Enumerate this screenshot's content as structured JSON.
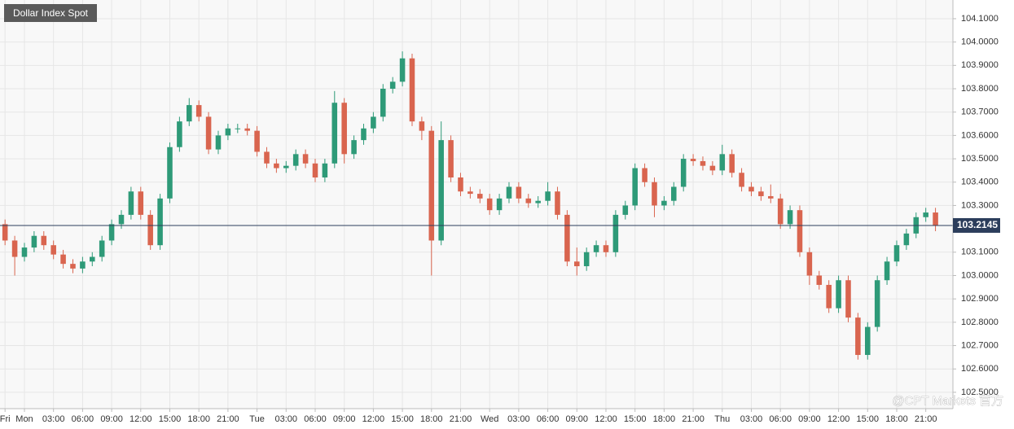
{
  "chart_data": {
    "type": "candlestick",
    "title": "Dollar Index Spot",
    "watermark": "@CPT Markets 官方",
    "up_color": "#2e9a78",
    "down_color": "#d9654f",
    "x": [
      -2,
      -1,
      0,
      1,
      2,
      3,
      4,
      5,
      6,
      7,
      8,
      9,
      10,
      11,
      12,
      13,
      14,
      15,
      16,
      17,
      18,
      19,
      20,
      21,
      22,
      23,
      24,
      25,
      26,
      27,
      28,
      29,
      30,
      31,
      32,
      33,
      34,
      35,
      36,
      37,
      38,
      39,
      40,
      41,
      42,
      43,
      44,
      45,
      46,
      47,
      48,
      49,
      50,
      51,
      52,
      53,
      54,
      55,
      56,
      57,
      58,
      59,
      60,
      61,
      62,
      63,
      64,
      65,
      66,
      67,
      68,
      69,
      70,
      71,
      72,
      73,
      74,
      75,
      76,
      77,
      78,
      79,
      80,
      81,
      82,
      83,
      84,
      85,
      86,
      87,
      88,
      89,
      90,
      91,
      92,
      93,
      94
    ],
    "open": [
      103.22,
      103.15,
      103.08,
      103.12,
      103.17,
      103.13,
      103.09,
      103.05,
      103.03,
      103.06,
      103.08,
      103.15,
      103.22,
      103.26,
      103.36,
      103.26,
      103.13,
      103.33,
      103.55,
      103.66,
      103.73,
      103.68,
      103.54,
      103.6,
      103.63,
      103.63,
      103.62,
      103.53,
      103.48,
      103.46,
      103.47,
      103.52,
      103.48,
      103.42,
      103.48,
      103.74,
      103.52,
      103.58,
      103.63,
      103.68,
      103.8,
      103.83,
      103.93,
      103.66,
      103.62,
      103.15,
      103.58,
      103.42,
      103.36,
      103.35,
      103.33,
      103.28,
      103.33,
      103.38,
      103.33,
      103.31,
      103.32,
      103.36,
      103.26,
      103.06,
      103.04,
      103.1,
      103.13,
      103.1,
      103.26,
      103.3,
      103.46,
      103.4,
      103.3,
      103.32,
      103.38,
      103.5,
      103.49,
      103.47,
      103.45,
      103.52,
      103.44,
      103.38,
      103.36,
      103.34,
      103.33,
      103.22,
      103.28,
      103.1,
      103.0,
      102.96,
      102.86,
      102.98,
      102.82,
      102.66,
      102.78,
      102.98,
      103.06,
      103.13,
      103.18,
      103.25,
      103.27
    ],
    "high": [
      103.24,
      103.17,
      103.14,
      103.19,
      103.19,
      103.15,
      103.11,
      103.07,
      103.08,
      103.1,
      103.17,
      103.24,
      103.28,
      103.38,
      103.38,
      103.28,
      103.35,
      103.57,
      103.68,
      103.76,
      103.75,
      103.7,
      103.62,
      103.65,
      103.65,
      103.65,
      103.64,
      103.55,
      103.5,
      103.49,
      103.54,
      103.54,
      103.5,
      103.5,
      103.79,
      103.76,
      103.6,
      103.65,
      103.7,
      103.82,
      103.85,
      103.96,
      103.95,
      103.68,
      103.64,
      103.66,
      103.6,
      103.44,
      103.38,
      103.37,
      103.35,
      103.35,
      103.4,
      103.4,
      103.35,
      103.34,
      103.4,
      103.38,
      103.28,
      103.12,
      103.12,
      103.15,
      103.15,
      103.28,
      103.32,
      103.48,
      103.48,
      103.42,
      103.34,
      103.4,
      103.52,
      103.52,
      103.51,
      103.49,
      103.56,
      103.54,
      103.46,
      103.4,
      103.38,
      103.39,
      103.35,
      103.3,
      103.3,
      103.12,
      103.02,
      102.98,
      103.0,
      103.0,
      102.84,
      102.8,
      103.0,
      103.08,
      103.15,
      103.2,
      103.27,
      103.29,
      103.29
    ],
    "low": [
      103.13,
      103.0,
      103.06,
      103.1,
      103.11,
      103.07,
      103.03,
      103.01,
      103.01,
      103.04,
      103.06,
      103.13,
      103.2,
      103.24,
      103.24,
      103.11,
      103.11,
      103.31,
      103.53,
      103.64,
      103.66,
      103.52,
      103.52,
      103.58,
      103.61,
      103.6,
      103.51,
      103.46,
      103.44,
      103.44,
      103.45,
      103.46,
      103.4,
      103.4,
      103.46,
      103.48,
      103.5,
      103.56,
      103.61,
      103.66,
      103.78,
      103.81,
      103.64,
      103.58,
      103.0,
      103.13,
      103.4,
      103.34,
      103.33,
      103.31,
      103.26,
      103.26,
      103.31,
      103.31,
      103.29,
      103.29,
      103.3,
      103.24,
      103.04,
      103.0,
      103.02,
      103.08,
      103.08,
      103.08,
      103.24,
      103.28,
      103.38,
      103.25,
      103.28,
      103.3,
      103.36,
      103.47,
      103.45,
      103.43,
      103.43,
      103.42,
      103.36,
      103.34,
      103.32,
      103.31,
      103.2,
      103.2,
      103.08,
      102.96,
      102.94,
      102.84,
      102.84,
      102.8,
      102.64,
      102.64,
      102.76,
      102.96,
      103.04,
      103.11,
      103.16,
      103.23,
      103.19
    ],
    "close": [
      103.15,
      103.08,
      103.12,
      103.17,
      103.13,
      103.09,
      103.05,
      103.03,
      103.06,
      103.08,
      103.15,
      103.22,
      103.26,
      103.36,
      103.26,
      103.13,
      103.33,
      103.55,
      103.66,
      103.73,
      103.68,
      103.54,
      103.6,
      103.63,
      103.63,
      103.62,
      103.53,
      103.48,
      103.46,
      103.47,
      103.52,
      103.48,
      103.42,
      103.48,
      103.74,
      103.52,
      103.58,
      103.63,
      103.68,
      103.8,
      103.83,
      103.93,
      103.66,
      103.62,
      103.15,
      103.58,
      103.42,
      103.36,
      103.35,
      103.33,
      103.28,
      103.33,
      103.38,
      103.33,
      103.31,
      103.32,
      103.36,
      103.26,
      103.06,
      103.04,
      103.1,
      103.13,
      103.1,
      103.26,
      103.3,
      103.46,
      103.4,
      103.3,
      103.32,
      103.38,
      103.5,
      103.49,
      103.47,
      103.45,
      103.52,
      103.44,
      103.38,
      103.36,
      103.34,
      103.33,
      103.22,
      103.28,
      103.1,
      103.0,
      102.96,
      102.86,
      102.98,
      102.82,
      102.66,
      102.78,
      102.98,
      103.06,
      103.13,
      103.18,
      103.25,
      103.27,
      103.2145
    ],
    "last_price": 103.2145,
    "xlim": [
      -2.52,
      95.8
    ],
    "ylim": [
      102.43,
      104.18
    ],
    "xticks": [
      {
        "value": -2,
        "label": "Fri"
      },
      {
        "value": 0,
        "label": "Mon"
      },
      {
        "value": 3,
        "label": "03:00"
      },
      {
        "value": 6,
        "label": "06:00"
      },
      {
        "value": 9,
        "label": "09:00"
      },
      {
        "value": 12,
        "label": "12:00"
      },
      {
        "value": 15,
        "label": "15:00"
      },
      {
        "value": 18,
        "label": "18:00"
      },
      {
        "value": 21,
        "label": "21:00"
      },
      {
        "value": 24,
        "label": "Tue"
      },
      {
        "value": 27,
        "label": "03:00"
      },
      {
        "value": 30,
        "label": "06:00"
      },
      {
        "value": 33,
        "label": "09:00"
      },
      {
        "value": 36,
        "label": "12:00"
      },
      {
        "value": 39,
        "label": "15:00"
      },
      {
        "value": 42,
        "label": "18:00"
      },
      {
        "value": 45,
        "label": "21:00"
      },
      {
        "value": 48,
        "label": "Wed"
      },
      {
        "value": 51,
        "label": "03:00"
      },
      {
        "value": 54,
        "label": "06:00"
      },
      {
        "value": 57,
        "label": "09:00"
      },
      {
        "value": 60,
        "label": "12:00"
      },
      {
        "value": 63,
        "label": "15:00"
      },
      {
        "value": 66,
        "label": "18:00"
      },
      {
        "value": 69,
        "label": "21:00"
      },
      {
        "value": 72,
        "label": "Thu"
      },
      {
        "value": 75,
        "label": "03:00"
      },
      {
        "value": 78,
        "label": "06:00"
      },
      {
        "value": 81,
        "label": "09:00"
      },
      {
        "value": 84,
        "label": "12:00"
      },
      {
        "value": 87,
        "label": "15:00"
      },
      {
        "value": 90,
        "label": "18:00"
      },
      {
        "value": 93,
        "label": "21:00"
      }
    ],
    "yticks": [
      {
        "value": 102.5,
        "label": "102.5000"
      },
      {
        "value": 102.6,
        "label": "102.6000"
      },
      {
        "value": 102.7,
        "label": "102.7000"
      },
      {
        "value": 102.8,
        "label": "102.8000"
      },
      {
        "value": 102.9,
        "label": "102.9000"
      },
      {
        "value": 103.0,
        "label": "103.0000"
      },
      {
        "value": 103.1,
        "label": "103.1000"
      },
      {
        "value": 103.3,
        "label": "103.3000"
      },
      {
        "value": 103.4,
        "label": "103.4000"
      },
      {
        "value": 103.5,
        "label": "103.5000"
      },
      {
        "value": 103.6,
        "label": "103.6000"
      },
      {
        "value": 103.7,
        "label": "103.7000"
      },
      {
        "value": 103.8,
        "label": "103.8000"
      },
      {
        "value": 103.9,
        "label": "103.9000"
      },
      {
        "value": 104.0,
        "label": "104.0000"
      },
      {
        "value": 104.1,
        "label": "104.1000"
      }
    ],
    "grid": true
  }
}
